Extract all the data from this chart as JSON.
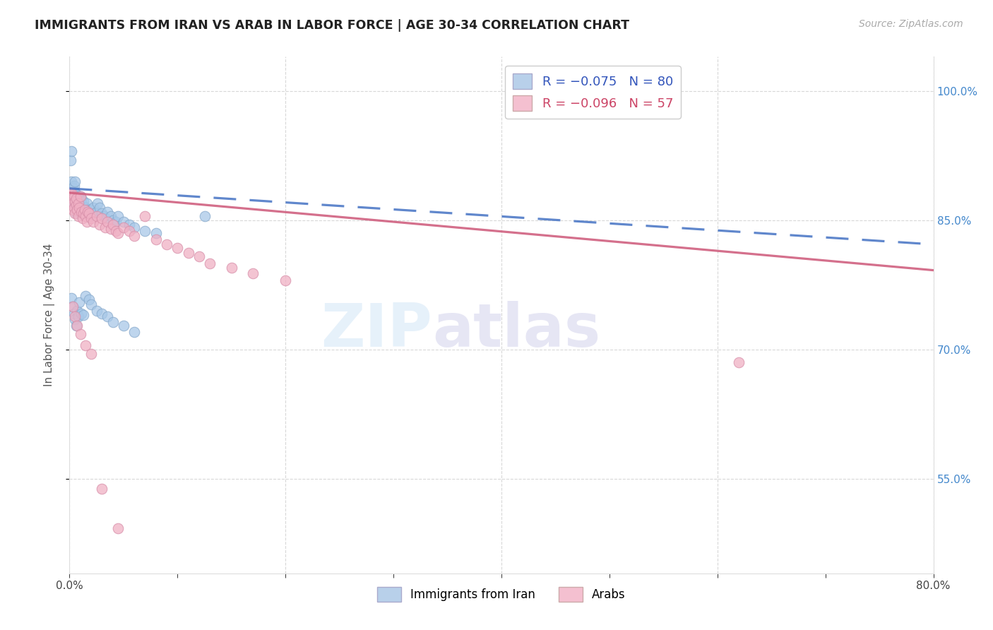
{
  "title": "IMMIGRANTS FROM IRAN VS ARAB IN LABOR FORCE | AGE 30-34 CORRELATION CHART",
  "source": "Source: ZipAtlas.com",
  "ylabel": "In Labor Force | Age 30-34",
  "xlim": [
    0.0,
    0.8
  ],
  "ylim": [
    0.44,
    1.04
  ],
  "y_ticks": [
    0.55,
    0.7,
    0.85,
    1.0
  ],
  "y_tick_labels": [
    "55.0%",
    "70.0%",
    "85.0%",
    "100.0%"
  ],
  "iran_color": "#a8c8e8",
  "arab_color": "#f0b0c4",
  "iran_line_color": "#4472c4",
  "arab_line_color": "#d06080",
  "iran_R": -0.075,
  "iran_N": 80,
  "arab_R": -0.096,
  "arab_N": 57,
  "iran_line_x0": 0.0,
  "iran_line_x1": 0.8,
  "iran_line_y0": 0.887,
  "iran_line_y1": 0.822,
  "arab_line_x0": 0.0,
  "arab_line_x1": 0.8,
  "arab_line_y0": 0.882,
  "arab_line_y1": 0.792,
  "background_color": "#ffffff",
  "grid_color": "#d8d8d8",
  "iran_points_x": [
    0.001,
    0.001,
    0.002,
    0.002,
    0.002,
    0.003,
    0.003,
    0.003,
    0.003,
    0.003,
    0.004,
    0.004,
    0.004,
    0.005,
    0.005,
    0.005,
    0.005,
    0.006,
    0.006,
    0.006,
    0.007,
    0.007,
    0.007,
    0.008,
    0.008,
    0.008,
    0.009,
    0.009,
    0.01,
    0.01,
    0.011,
    0.011,
    0.012,
    0.013,
    0.013,
    0.014,
    0.015,
    0.016,
    0.017,
    0.018,
    0.019,
    0.02,
    0.022,
    0.023,
    0.025,
    0.026,
    0.028,
    0.03,
    0.032,
    0.033,
    0.035,
    0.038,
    0.04,
    0.043,
    0.045,
    0.05,
    0.055,
    0.06,
    0.07,
    0.08,
    0.002,
    0.003,
    0.004,
    0.005,
    0.006,
    0.007,
    0.008,
    0.009,
    0.011,
    0.013,
    0.015,
    0.018,
    0.02,
    0.025,
    0.03,
    0.035,
    0.04,
    0.05,
    0.06,
    0.125
  ],
  "iran_points_y": [
    0.88,
    0.92,
    0.878,
    0.895,
    0.93,
    0.882,
    0.87,
    0.875,
    0.885,
    0.888,
    0.89,
    0.875,
    0.878,
    0.868,
    0.882,
    0.895,
    0.878,
    0.872,
    0.88,
    0.858,
    0.875,
    0.865,
    0.87,
    0.878,
    0.862,
    0.87,
    0.875,
    0.86,
    0.865,
    0.878,
    0.87,
    0.875,
    0.868,
    0.872,
    0.862,
    0.858,
    0.865,
    0.87,
    0.862,
    0.858,
    0.855,
    0.862,
    0.865,
    0.858,
    0.86,
    0.87,
    0.865,
    0.858,
    0.855,
    0.852,
    0.86,
    0.855,
    0.85,
    0.848,
    0.855,
    0.848,
    0.845,
    0.842,
    0.838,
    0.835,
    0.76,
    0.75,
    0.742,
    0.735,
    0.728,
    0.745,
    0.738,
    0.755,
    0.742,
    0.74,
    0.762,
    0.758,
    0.752,
    0.745,
    0.742,
    0.738,
    0.732,
    0.728,
    0.72,
    0.855
  ],
  "arab_points_x": [
    0.001,
    0.002,
    0.002,
    0.003,
    0.003,
    0.004,
    0.004,
    0.005,
    0.005,
    0.006,
    0.006,
    0.007,
    0.008,
    0.008,
    0.009,
    0.01,
    0.011,
    0.012,
    0.013,
    0.014,
    0.015,
    0.016,
    0.017,
    0.018,
    0.02,
    0.022,
    0.025,
    0.028,
    0.03,
    0.033,
    0.035,
    0.038,
    0.04,
    0.043,
    0.045,
    0.05,
    0.055,
    0.06,
    0.07,
    0.08,
    0.09,
    0.1,
    0.11,
    0.12,
    0.13,
    0.15,
    0.17,
    0.2,
    0.62,
    0.003,
    0.005,
    0.007,
    0.01,
    0.015,
    0.02,
    0.03,
    0.045
  ],
  "arab_points_y": [
    0.88,
    0.875,
    0.882,
    0.87,
    0.862,
    0.878,
    0.865,
    0.872,
    0.858,
    0.868,
    0.875,
    0.862,
    0.87,
    0.855,
    0.865,
    0.878,
    0.86,
    0.852,
    0.858,
    0.862,
    0.855,
    0.848,
    0.86,
    0.858,
    0.852,
    0.848,
    0.855,
    0.845,
    0.852,
    0.842,
    0.848,
    0.84,
    0.845,
    0.838,
    0.835,
    0.842,
    0.838,
    0.832,
    0.855,
    0.828,
    0.822,
    0.818,
    0.812,
    0.808,
    0.8,
    0.795,
    0.788,
    0.78,
    0.685,
    0.75,
    0.738,
    0.728,
    0.718,
    0.705,
    0.695,
    0.538,
    0.492
  ]
}
